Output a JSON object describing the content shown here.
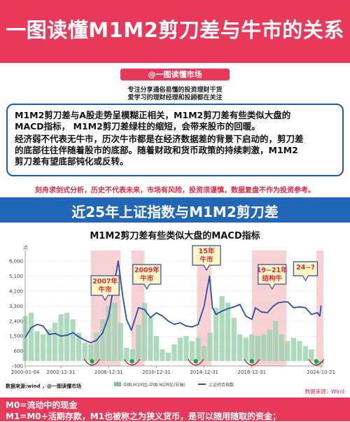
{
  "header": {
    "title": "一图读懂M1M2剪刀差与牛市的关系"
  },
  "account": {
    "name": "@一图读懂市场"
  },
  "slogan": {
    "line1": "专注分享通俗易懂的投资理财干货",
    "line2": "爱学习的理财经理和投顾都在关注"
  },
  "summary": {
    "line1": "M1M2剪刀差与A股走势呈模糊正相关，M1M2剪刀差有些类似大盘的",
    "line2": "MACD指标， M1M2剪刀差绿柱的缩短，会带来股市的回暖。",
    "line3": "经济弱不代表无牛市，历次牛市都是在经济数据差的背景下启动的，剪刀差",
    "line4": "的底部往往伴随着股市的底部。随着财政和货币政策的持续刺激，M1M2",
    "line5": "剪刀差有望底部钝化或反转。"
  },
  "disclaimer": "刻舟求剑式分析，历史不代表未来，市场有风险，投资须谨慎，数据复盘不作为投资参考。",
  "chart_banner": {
    "title": "近25年上证指数与M1M2剪刀差"
  },
  "chart_data": {
    "type": "bar+line",
    "title": "M1M2剪刀差有些类似大盘的MACD指标",
    "y_unit": "点",
    "yticks": [
      -300,
      600,
      1500,
      2400,
      3300,
      4200,
      5100,
      6000
    ],
    "ylim": [
      -300,
      6300
    ],
    "xticks": [
      "2000-01-04",
      "2002-12-31",
      "2006-12-31",
      "2010-12-31",
      "2014-12-31",
      "2018-12-31",
      "2024-10-21"
    ],
    "xrange": [
      2000.0,
      2025.0
    ],
    "highlight_periods": [
      {
        "start": 2005.5,
        "end": 2008.0,
        "label": "2007年\n牛市"
      },
      {
        "start": 2008.9,
        "end": 2010.0,
        "label": "2009年\n牛市"
      },
      {
        "start": 2014.4,
        "end": 2015.6,
        "label": "15年\n牛市"
      },
      {
        "start": 2019.0,
        "end": 2021.9,
        "label": "19~21年\n结构牛"
      },
      {
        "start": 2024.4,
        "end": 2025.0,
        "label": "24~?"
      }
    ],
    "series": [
      {
        "name": "中国:M1同比-中国:M2同比(右轴)",
        "type": "bar",
        "color_positive": "#e8a3a9",
        "color_negative": "#7cc49a",
        "x": [
          2000.0,
          2000.5,
          2001.0,
          2001.5,
          2002.0,
          2002.5,
          2003.0,
          2003.5,
          2004.0,
          2004.5,
          2005.0,
          2005.5,
          2006.0,
          2006.5,
          2007.0,
          2007.5,
          2008.0,
          2008.5,
          2009.0,
          2009.5,
          2010.0,
          2010.5,
          2011.0,
          2011.5,
          2012.0,
          2012.5,
          2013.0,
          2013.5,
          2014.0,
          2014.5,
          2015.0,
          2015.5,
          2016.0,
          2016.5,
          2017.0,
          2017.5,
          2018.0,
          2018.5,
          2019.0,
          2019.5,
          2020.0,
          2020.5,
          2021.0,
          2021.5,
          2022.0,
          2022.5,
          2023.0,
          2023.5,
          2024.0,
          2024.5,
          2024.8
        ],
        "values": [
          2700,
          2900,
          1800,
          1600,
          1900,
          2300,
          2800,
          2900,
          2500,
          1700,
          1100,
          1000,
          1700,
          2500,
          3300,
          3500,
          2300,
          800,
          700,
          2200,
          3500,
          2600,
          1500,
          700,
          500,
          1000,
          1400,
          1500,
          1200,
          1400,
          900,
          1700,
          3200,
          3900,
          3500,
          2600,
          1600,
          1400,
          1600,
          1500,
          1600,
          1900,
          2400,
          1600,
          1200,
          1400,
          1200,
          900,
          700,
          -200,
          -150
        ]
      },
      {
        "name": "上证综合指数",
        "type": "line",
        "color": "#2b4fa8",
        "x": [
          2000.0,
          2000.5,
          2001.0,
          2001.5,
          2002.0,
          2002.5,
          2003.0,
          2003.5,
          2004.0,
          2004.5,
          2005.0,
          2005.5,
          2006.0,
          2006.5,
          2007.0,
          2007.3,
          2007.8,
          2008.2,
          2008.5,
          2008.9,
          2009.5,
          2010.0,
          2010.5,
          2011.0,
          2011.5,
          2012.0,
          2012.5,
          2013.0,
          2013.5,
          2014.0,
          2014.5,
          2015.0,
          2015.45,
          2015.7,
          2016.0,
          2016.5,
          2017.0,
          2017.5,
          2018.0,
          2018.5,
          2019.0,
          2019.3,
          2019.8,
          2020.3,
          2020.8,
          2021.2,
          2021.7,
          2022.0,
          2022.5,
          2023.0,
          2023.5,
          2024.0,
          2024.5,
          2024.7,
          2024.8
        ],
        "values": [
          1400,
          2000,
          2200,
          2100,
          1600,
          1650,
          1500,
          1550,
          1700,
          1450,
          1250,
          1100,
          1250,
          1700,
          2700,
          4000,
          6000,
          3800,
          2500,
          1850,
          3200,
          3100,
          2600,
          2900,
          2700,
          2400,
          2200,
          2300,
          2100,
          2050,
          2200,
          3300,
          5100,
          3200,
          2800,
          3000,
          3150,
          3250,
          3400,
          2700,
          2500,
          3200,
          2950,
          2900,
          3300,
          3500,
          3550,
          3550,
          3200,
          3250,
          3200,
          2800,
          2900,
          2700,
          3300
        ]
      }
    ]
  },
  "chart_footer": {
    "source_left": "数据来源:wind ，@一图读懂市场",
    "source_right": "数据来源：Wind"
  },
  "footer": {
    "line1": "M0=流动中的现金",
    "line2": "M1=M0+活期存款，M1也被称之为狭义货币，是可以随用随取的资金；"
  }
}
